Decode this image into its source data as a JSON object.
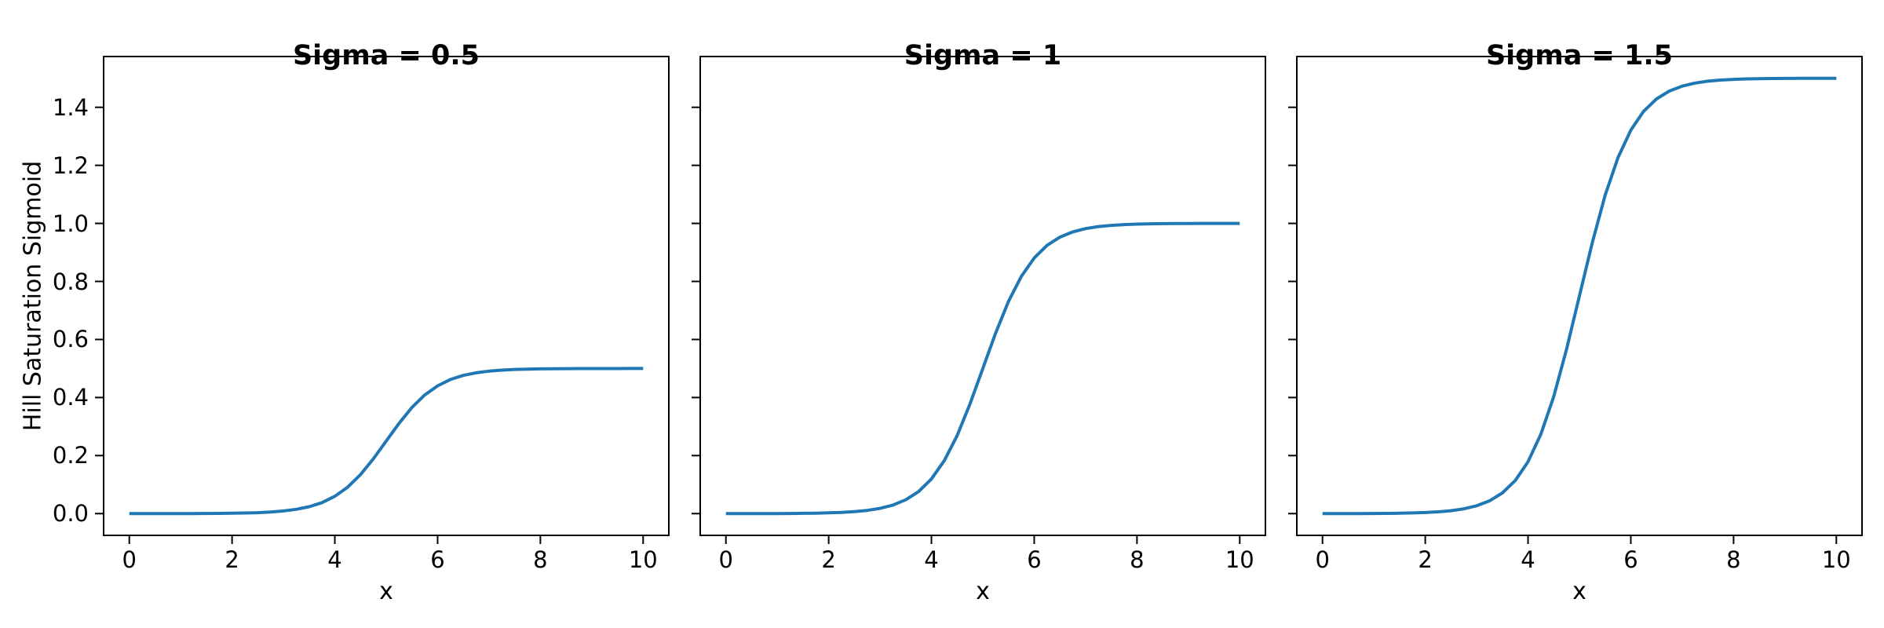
{
  "figure": {
    "background": "#ffffff",
    "text_color": "#000000"
  },
  "chart_data": {
    "type": "line",
    "layout": "1x3 subplots, shared y axis",
    "xlabel": "x",
    "ylabel": "Hill Saturation Sigmoid",
    "xlim": [
      -0.5,
      10.5
    ],
    "ylim": [
      -0.075,
      1.575
    ],
    "xticks": [
      0,
      2,
      4,
      6,
      8,
      10
    ],
    "yticks": [
      0.0,
      0.2,
      0.4,
      0.6,
      0.8,
      1.0,
      1.2,
      1.4
    ],
    "grid": false,
    "legend": "none",
    "line_color": "#1f77b4",
    "x": [
      0,
      0.25,
      0.5,
      0.75,
      1,
      1.25,
      1.5,
      1.75,
      2,
      2.25,
      2.5,
      2.75,
      3,
      3.25,
      3.5,
      3.75,
      4,
      4.25,
      4.5,
      4.75,
      5,
      5.25,
      5.5,
      5.75,
      6,
      6.25,
      6.5,
      6.75,
      7,
      7.25,
      7.5,
      7.75,
      8,
      8.25,
      8.5,
      8.75,
      9,
      9.25,
      9.5,
      9.75,
      10
    ],
    "subplots": [
      {
        "title": "Sigma = 0.5",
        "sigma": 0.5,
        "values": [
          0.0,
          0.0,
          0.0001,
          0.0001,
          0.0002,
          0.0003,
          0.0005,
          0.0008,
          0.0012,
          0.002,
          0.0033,
          0.0055,
          0.009,
          0.0147,
          0.0237,
          0.0379,
          0.0596,
          0.0912,
          0.1345,
          0.1888,
          0.25,
          0.3112,
          0.3655,
          0.4088,
          0.4404,
          0.4621,
          0.4763,
          0.4853,
          0.491,
          0.4945,
          0.4967,
          0.498,
          0.4988,
          0.4993,
          0.4995,
          0.4997,
          0.4998,
          0.4999,
          0.4999,
          0.5,
          0.5
        ]
      },
      {
        "title": "Sigma = 1",
        "sigma": 1,
        "values": [
          0.0,
          0.0001,
          0.0001,
          0.0002,
          0.0003,
          0.0006,
          0.0009,
          0.0015,
          0.0025,
          0.0041,
          0.0067,
          0.011,
          0.018,
          0.0293,
          0.0474,
          0.0759,
          0.1192,
          0.1824,
          0.2689,
          0.3775,
          0.5,
          0.6225,
          0.7311,
          0.8176,
          0.8808,
          0.9241,
          0.9526,
          0.9707,
          0.982,
          0.989,
          0.9933,
          0.9959,
          0.9975,
          0.9985,
          0.9991,
          0.9995,
          0.9997,
          0.9998,
          0.9999,
          0.9999,
          1.0
        ]
      },
      {
        "title": "Sigma = 1.5",
        "sigma": 1.5,
        "values": [
          0.0001,
          0.0001,
          0.0002,
          0.0003,
          0.0005,
          0.0008,
          0.0014,
          0.0023,
          0.0037,
          0.0061,
          0.01,
          0.0165,
          0.027,
          0.044,
          0.0711,
          0.1138,
          0.1788,
          0.2736,
          0.4034,
          0.5663,
          0.75,
          0.9337,
          1.0966,
          1.2264,
          1.3212,
          1.3862,
          1.4289,
          1.456,
          1.473,
          1.4835,
          1.49,
          1.4939,
          1.4963,
          1.4978,
          1.4986,
          1.4992,
          1.4995,
          1.4997,
          1.4998,
          1.4999,
          1.4999
        ]
      }
    ]
  }
}
